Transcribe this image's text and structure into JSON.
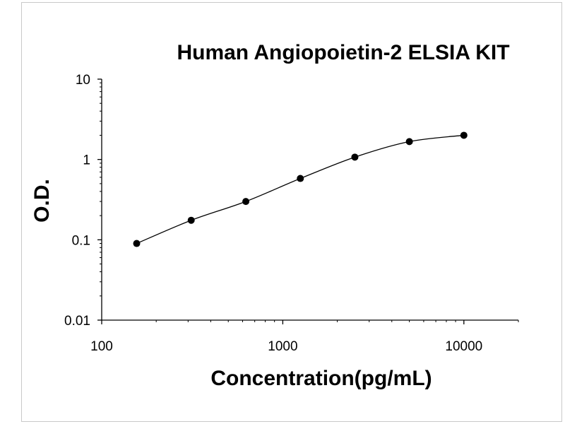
{
  "chart_data": {
    "type": "scatter",
    "title": "Human Angiopoietin-2 ELSIA KIT",
    "xlabel": "Concentration(pg/mL)",
    "ylabel": "O.D.",
    "x_scale": "log",
    "y_scale": "log",
    "xlim": [
      100,
      20000
    ],
    "ylim": [
      0.01,
      10
    ],
    "x_ticks": [
      100,
      1000,
      10000
    ],
    "x_tick_labels": [
      "100",
      "1000",
      "10000"
    ],
    "y_ticks": [
      0.01,
      0.1,
      1,
      10
    ],
    "y_tick_labels": [
      "0.01",
      "0.1",
      "1",
      "10"
    ],
    "grid": false,
    "series": [
      {
        "x": [
          156,
          312,
          625,
          1250,
          2500,
          5000,
          10000
        ],
        "y": [
          0.09,
          0.175,
          0.3,
          0.58,
          1.07,
          1.67,
          2.0
        ]
      }
    ],
    "fit_curve": true,
    "color": "#000000"
  }
}
